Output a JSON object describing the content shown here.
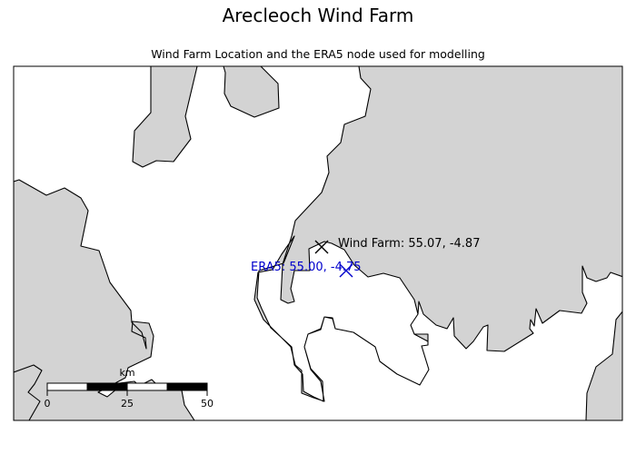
{
  "figure": {
    "title": "Arecleoch Wind Farm"
  },
  "map": {
    "subtitle": "Wind Farm Location and the ERA5 node used for modelling",
    "land_color": "#d3d3d3",
    "sea_color": "#ffffff",
    "markers": [
      {
        "id": "wind-farm",
        "label": "Wind Farm: 55.07, -4.87",
        "lat": 55.07,
        "lon": -4.87,
        "color": "#000000",
        "symbol": "x"
      },
      {
        "id": "era5-node",
        "label": "ERA5: 55.00, -4.75",
        "lat": 55.0,
        "lon": -4.75,
        "color": "#0000cc",
        "symbol": "x"
      }
    ],
    "scale_bar": {
      "unit": "km",
      "ticks": [
        "0",
        "25",
        "50"
      ]
    }
  }
}
